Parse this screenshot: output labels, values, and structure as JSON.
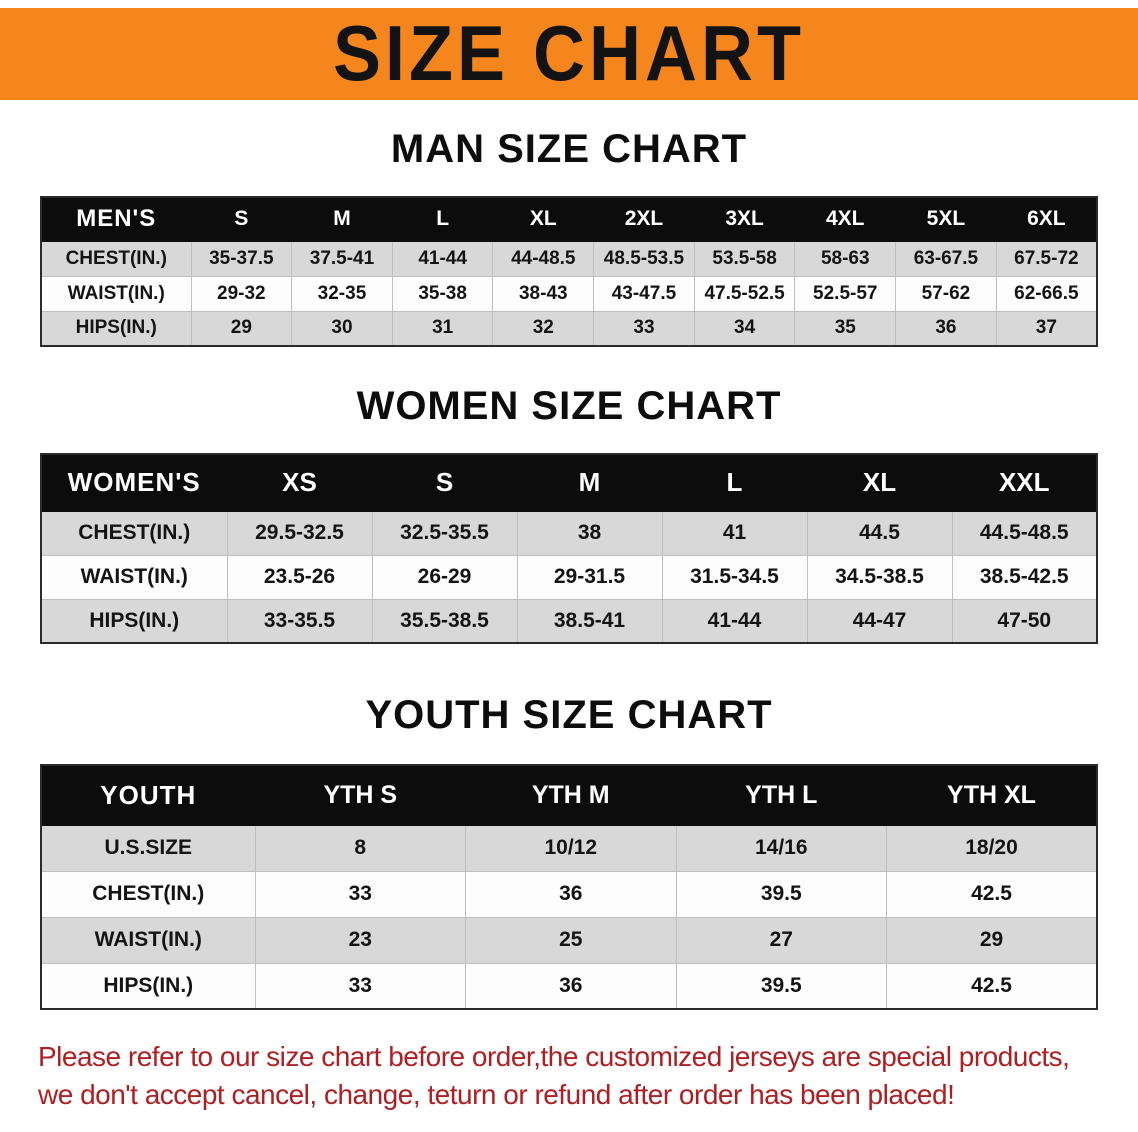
{
  "banner": {
    "title": "SIZE CHART",
    "bg_color": "#F5861D",
    "text_color": "#131313"
  },
  "sections": [
    {
      "id": "men",
      "heading": "MAN SIZE CHART",
      "table": {
        "label": "MEN'S",
        "columns": [
          "S",
          "M",
          "L",
          "XL",
          "2XL",
          "3XL",
          "4XL",
          "5XL",
          "6XL"
        ],
        "rows": [
          {
            "label": "CHEST(IN.)",
            "values": [
              "35-37.5",
              "37.5-41",
              "41-44",
              "44-48.5",
              "48.5-53.5",
              "53.5-58",
              "58-63",
              "63-67.5",
              "67.5-72"
            ]
          },
          {
            "label": "WAIST(IN.)",
            "values": [
              "29-32",
              "32-35",
              "35-38",
              "38-43",
              "43-47.5",
              "47.5-52.5",
              "52.5-57",
              "57-62",
              "62-66.5"
            ]
          },
          {
            "label": "HIPS(IN.)",
            "values": [
              "29",
              "30",
              "31",
              "32",
              "33",
              "34",
              "35",
              "36",
              "37"
            ]
          }
        ]
      }
    },
    {
      "id": "women",
      "heading": "WOMEN SIZE CHART",
      "table": {
        "label": "WOMEN'S",
        "columns": [
          "XS",
          "S",
          "M",
          "L",
          "XL",
          "XXL"
        ],
        "rows": [
          {
            "label": "CHEST(IN.)",
            "values": [
              "29.5-32.5",
              "32.5-35.5",
              "38",
              "41",
              "44.5",
              "44.5-48.5"
            ]
          },
          {
            "label": "WAIST(IN.)",
            "values": [
              "23.5-26",
              "26-29",
              "29-31.5",
              "31.5-34.5",
              "34.5-38.5",
              "38.5-42.5"
            ]
          },
          {
            "label": "HIPS(IN.)",
            "values": [
              "33-35.5",
              "35.5-38.5",
              "38.5-41",
              "41-44",
              "44-47",
              "47-50"
            ]
          }
        ]
      }
    },
    {
      "id": "youth",
      "heading": "YOUTH SIZE CHART",
      "table": {
        "label": "YOUTH",
        "columns": [
          "YTH S",
          "YTH M",
          "YTH L",
          "YTH XL"
        ],
        "rows": [
          {
            "label": "U.S.SIZE",
            "values": [
              "8",
              "10/12",
              "14/16",
              "18/20"
            ]
          },
          {
            "label": "CHEST(IN.)",
            "values": [
              "33",
              "36",
              "39.5",
              "42.5"
            ]
          },
          {
            "label": "WAIST(IN.)",
            "values": [
              "23",
              "25",
              "27",
              "29"
            ]
          },
          {
            "label": "HIPS(IN.)",
            "values": [
              "33",
              "36",
              "39.5",
              "42.5"
            ]
          }
        ]
      }
    }
  ],
  "disclaimer": {
    "color": "#AE1F23",
    "lines": [
      "Please refer to our size chart before order,the customized jerseys are special products,",
      "we don't accept cancel, change, teturn or refund after order has been placed!"
    ]
  }
}
